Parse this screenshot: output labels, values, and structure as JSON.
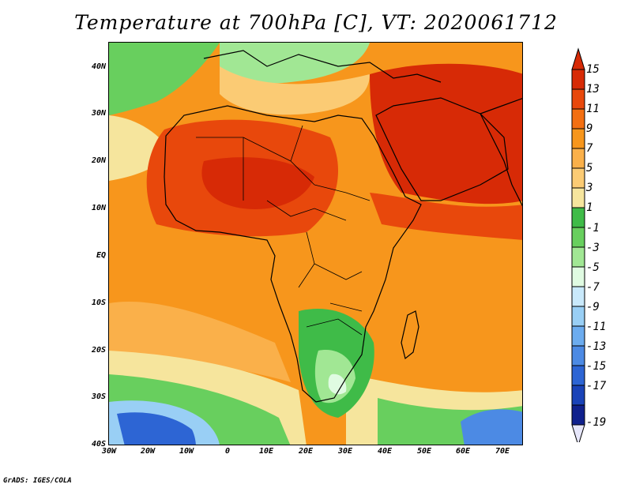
{
  "title": "Temperature at 700hPa [C], VT: 2020061712",
  "credit": "GrADS: IGES/COLA",
  "axes": {
    "lat_labels": [
      "40N",
      "30N",
      "20N",
      "10N",
      "EQ",
      "10S",
      "20S",
      "30S",
      "40S"
    ],
    "lon_labels": [
      "30W",
      "20W",
      "10W",
      "0",
      "10E",
      "20E",
      "30E",
      "40E",
      "50E",
      "60E",
      "70E"
    ]
  },
  "colorbar": {
    "labels": [
      "15",
      "13",
      "11",
      "9",
      "7",
      "5",
      "3",
      "1",
      "-1",
      "-3",
      "-5",
      "-7",
      "-9",
      "-11",
      "-13",
      "-15",
      "-17",
      "-19"
    ],
    "colors": [
      "#d72a06",
      "#e8480c",
      "#f36f12",
      "#f7961c",
      "#fab04a",
      "#fbcb74",
      "#f6e59d",
      "#3fbb48",
      "#68cf5e",
      "#a1e794",
      "#e0fbe2",
      "#c9e9fb",
      "#99cff5",
      "#6cacef",
      "#4c8ae4",
      "#2d65d4",
      "#1a43b8",
      "#10218d"
    ]
  },
  "map": {
    "background_color": "#f7961c",
    "regions": [
      {
        "name": "north-atlantic-cool",
        "color": "#68cf5e"
      },
      {
        "name": "mediterranean-cool",
        "color": "#a1e794"
      },
      {
        "name": "sahara-hot",
        "color": "#e8480c"
      },
      {
        "name": "arabia-hot",
        "color": "#d72a06"
      },
      {
        "name": "south-atlantic-cold",
        "color": "#2d65d4"
      },
      {
        "name": "southern-indian-cold",
        "color": "#4c8ae4"
      },
      {
        "name": "southern-africa-cool",
        "color": "#3fbb48"
      },
      {
        "name": "lesotho-cold",
        "color": "#e0fbe2"
      }
    ]
  }
}
